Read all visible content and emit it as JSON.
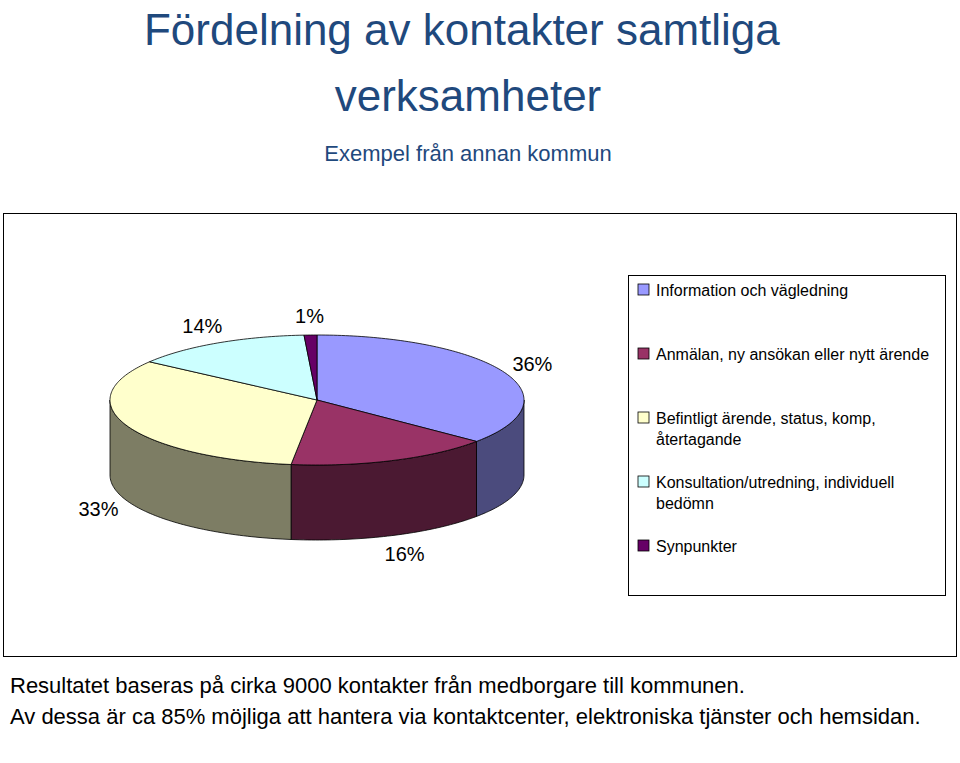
{
  "chart_data": {
    "type": "pie",
    "title": "Fördelning av kontakter samtliga verksamheter",
    "subtitle": "Exempel från annan kommun",
    "categories": [
      "Information och vägledning",
      "Anmälan, ny ansökan eller nytt ärende",
      "Befintligt ärende, status, komp, återtagande",
      "Konsultation/utredning, individuell bedömn",
      "Synpunkter"
    ],
    "values": [
      36,
      16,
      33,
      14,
      1
    ],
    "value_labels": [
      "36%",
      "16%",
      "33%",
      "14%",
      "1%"
    ],
    "colors": [
      "#9999ff",
      "#993366",
      "#ffffcc",
      "#ccffff",
      "#660066"
    ],
    "data_labels": true,
    "legend": "right",
    "annotations": [
      "Resultatet baseras på cirka 9000 kontakter från medborgare till kommunen.",
      "Av dessa är ca 85% möjliga att hantera via kontaktcenter, elektroniska tjänster och hemsidan."
    ]
  }
}
